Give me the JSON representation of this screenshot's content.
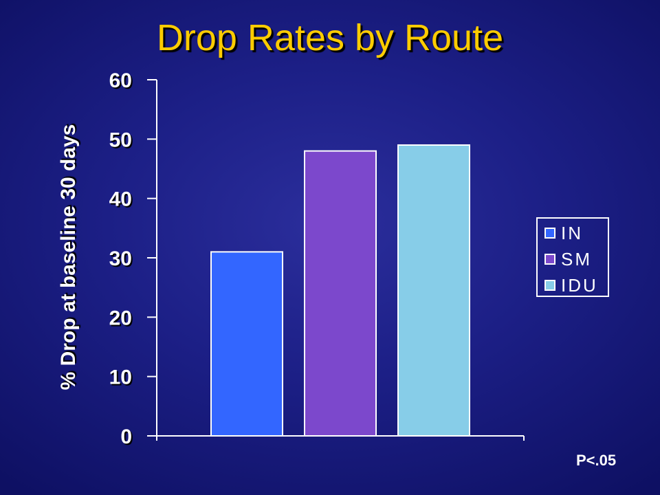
{
  "slide": {
    "title": "Drop Rates by Route",
    "note": "P<.05"
  },
  "chart_data": {
    "type": "bar",
    "categories": [
      "IN",
      "SM",
      "IDU"
    ],
    "values": [
      31,
      48,
      49
    ],
    "colors": [
      "#3366ff",
      "#7c48cc",
      "#87cde8"
    ],
    "title": "Drop Rates by Route",
    "xlabel": "",
    "ylabel": "% Drop at baseline 30 days",
    "ylim": [
      0,
      60
    ],
    "yticks": [
      0,
      10,
      20,
      30,
      40,
      50,
      60
    ],
    "grid": false,
    "legend": {
      "placement": "right",
      "entries": [
        "IN",
        "SM",
        "IDU"
      ]
    }
  }
}
